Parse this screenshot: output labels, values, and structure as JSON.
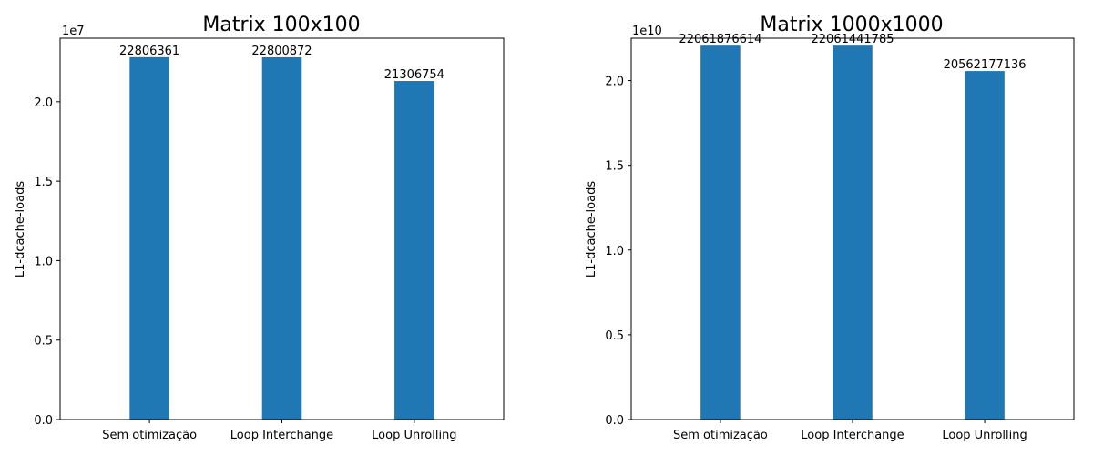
{
  "chart_data": [
    {
      "type": "bar",
      "title": "Matrix 100x100",
      "xlabel": "",
      "ylabel": "L1-dcache-loads",
      "categories": [
        "Sem otimização",
        "Loop Interchange",
        "Loop Unrolling"
      ],
      "values": [
        22806361,
        22800872,
        21306754
      ],
      "data_labels": [
        "22806361",
        "22800872",
        "21306754"
      ],
      "ylim": [
        0,
        24000000
      ],
      "yticks": [
        0,
        5000000,
        10000000,
        15000000,
        20000000
      ],
      "ytick_labels": [
        "0.0",
        "0.5",
        "1.0",
        "1.5",
        "2.0"
      ],
      "y_offset_label": "1e7",
      "bar_color": "#1f77b4",
      "grid": false,
      "legend": "none"
    },
    {
      "type": "bar",
      "title": "Matrix 1000x1000",
      "xlabel": "",
      "ylabel": "L1-dcache-loads",
      "categories": [
        "Sem otimização",
        "Loop Interchange",
        "Loop Unrolling"
      ],
      "values": [
        22061876614,
        22061441785,
        20562177136
      ],
      "data_labels": [
        "22061876614",
        "22061441785",
        "20562177136"
      ],
      "ylim": [
        0,
        22500000000
      ],
      "yticks": [
        0,
        5000000000,
        10000000000,
        15000000000,
        20000000000
      ],
      "ytick_labels": [
        "0.0",
        "0.5",
        "1.0",
        "1.5",
        "2.0"
      ],
      "y_offset_label": "1e10",
      "bar_color": "#1f77b4",
      "grid": false,
      "legend": "none"
    }
  ]
}
